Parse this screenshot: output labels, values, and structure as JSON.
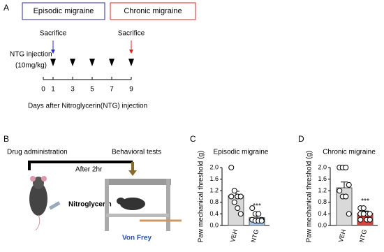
{
  "panel_a": {
    "label": "A",
    "episodic": "Episodic migraine",
    "chronic": "Chronic migraine",
    "sacrifice_1": "Sacrifice",
    "sacrifice_2": "Sacrifice",
    "injection": "NTG injection",
    "dose": "(10mg/kg)",
    "days": [
      0,
      1,
      3,
      5,
      7,
      9
    ],
    "injection_days": [
      1,
      3,
      5,
      7,
      9
    ],
    "sacrifice_days": [
      1,
      9
    ],
    "axis_label": "Days after Nitroglycerin(NTG) injection"
  },
  "panel_b": {
    "label": "B",
    "drug": "Drug administration",
    "behavior": "Behavioral tests",
    "after": "After 2hr",
    "ntg": "Nitroglycerin",
    "vonfrey": "Von Frey"
  },
  "chart_data": [
    {
      "type": "bar",
      "panel": "C",
      "title": "Episodic migraine",
      "ylabel": "Paw mechanical threshold (g)",
      "categories": [
        "VEH",
        "NTG"
      ],
      "values": [
        1.03,
        0.27
      ],
      "errors": [
        0.15,
        0.06
      ],
      "colors": [
        "#d9d9d9",
        "#a9c9ee"
      ],
      "points": [
        [
          2.0,
          1.2,
          1.0,
          1.0,
          1.0,
          0.8,
          0.6,
          0.4
        ],
        [
          0.6,
          0.4,
          0.4,
          0.2,
          0.2,
          0.16,
          0.16,
          0.16
        ]
      ],
      "annotation": "***",
      "ylim": [
        0,
        2.0
      ],
      "yticks": [
        {
          "value": 0,
          "label": "0.0"
        },
        {
          "value": 0.4,
          "label": "0.4"
        },
        {
          "value": 0.8,
          "label": "0.8"
        },
        {
          "value": 1.2,
          "label": "1.2"
        },
        {
          "value": 1.6,
          "label": "1.6"
        },
        {
          "value": 2.0,
          "label": "2.0"
        }
      ]
    },
    {
      "type": "bar",
      "panel": "D",
      "title": "Chronic migraine",
      "ylabel": "Paw mechanical threshold (g)",
      "categories": [
        "VEH",
        "NTG"
      ],
      "values": [
        1.3,
        0.42
      ],
      "errors": [
        0.2,
        0.08
      ],
      "colors": [
        "#d9d9d9",
        "#e0403c"
      ],
      "points": [
        [
          2.0,
          2.0,
          2.0,
          1.4,
          1.2,
          1.0,
          1.0,
          0.4
        ],
        [
          0.6,
          0.6,
          0.4,
          0.4,
          0.4,
          0.4,
          0.2,
          0.2,
          0.2
        ]
      ],
      "annotation": "***",
      "ylim": [
        0,
        2.0
      ],
      "yticks": [
        {
          "value": 0,
          "label": "0.0"
        },
        {
          "value": 0.4,
          "label": "0.4"
        },
        {
          "value": 0.8,
          "label": "0.8"
        },
        {
          "value": 1.2,
          "label": "1.2"
        },
        {
          "value": 1.6,
          "label": "1.6"
        },
        {
          "value": 2.0,
          "label": "2.0"
        }
      ]
    }
  ]
}
